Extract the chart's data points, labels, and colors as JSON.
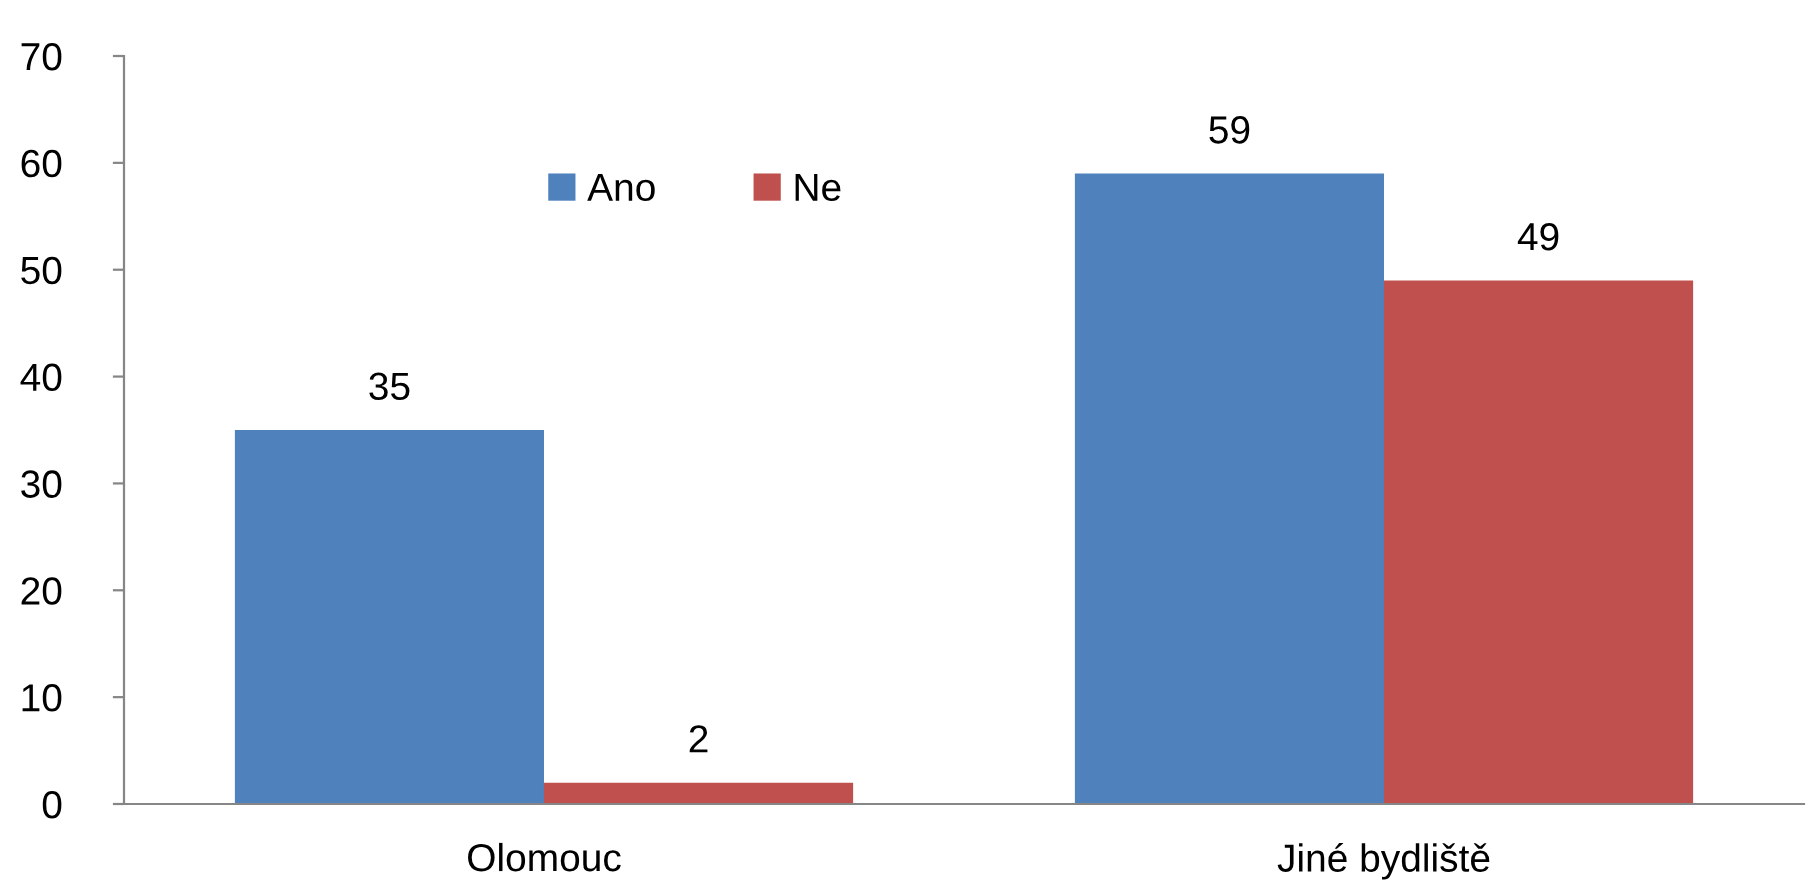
{
  "chart_data": {
    "type": "bar",
    "categories": [
      "Olomouc",
      "Jiné bydliště"
    ],
    "series": [
      {
        "name": "Ano",
        "color": "#4f81bd",
        "values": [
          35,
          59
        ]
      },
      {
        "name": "Ne",
        "color": "#c0504d",
        "values": [
          2,
          49
        ]
      }
    ],
    "ylim": [
      0,
      70
    ],
    "yticks": [
      0,
      10,
      20,
      30,
      40,
      50,
      60,
      70
    ],
    "data_labels": true,
    "legend": "top",
    "grid": false
  }
}
